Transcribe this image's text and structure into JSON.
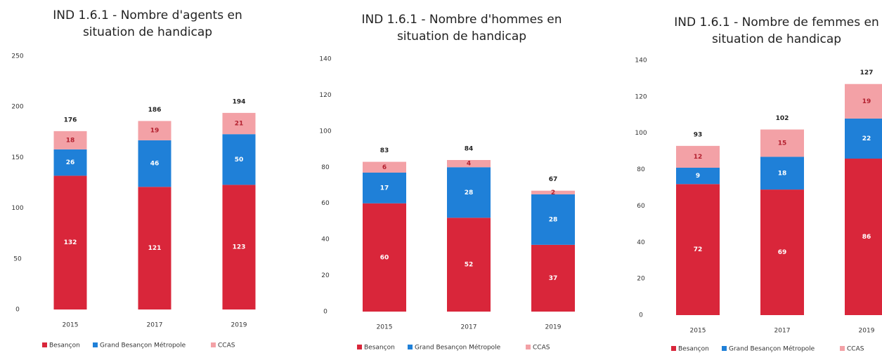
{
  "chart_data": [
    {
      "type": "bar",
      "stacked": true,
      "title": [
        "IND 1.6.1 - Nombre d'agents en",
        "situation de handicap"
      ],
      "categories": [
        "2015",
        "2017",
        "2019"
      ],
      "series": [
        {
          "name": "Besançon",
          "color": "#d9263a",
          "values": [
            132,
            121,
            123
          ]
        },
        {
          "name": "Grand Besançon Métropole",
          "color": "#1f80d8",
          "values": [
            26,
            46,
            50
          ]
        },
        {
          "name": "CCAS",
          "color": "#f3a1a6",
          "values": [
            18,
            19,
            21
          ]
        }
      ],
      "totals": [
        176,
        186,
        194
      ],
      "ylim": [
        0,
        250
      ],
      "yticks": [
        0,
        50,
        100,
        150,
        200,
        250
      ]
    },
    {
      "type": "bar",
      "stacked": true,
      "title": [
        "IND 1.6.1 - Nombre d'hommes en",
        "situation de handicap"
      ],
      "categories": [
        "2015",
        "2017",
        "2019"
      ],
      "series": [
        {
          "name": "Besançon",
          "color": "#d9263a",
          "values": [
            60,
            52,
            37
          ]
        },
        {
          "name": "Grand Besançon Métropole",
          "color": "#1f80d8",
          "values": [
            17,
            28,
            28
          ]
        },
        {
          "name": "CCAS",
          "color": "#f3a1a6",
          "values": [
            6,
            4,
            2
          ]
        }
      ],
      "totals": [
        83,
        84,
        67
      ],
      "ylim": [
        0,
        140
      ],
      "yticks": [
        0,
        20,
        40,
        60,
        80,
        100,
        120,
        140
      ]
    },
    {
      "type": "bar",
      "stacked": true,
      "title": [
        "IND 1.6.1 - Nombre de femmes en",
        "situation de handicap"
      ],
      "categories": [
        "2015",
        "2017",
        "2019"
      ],
      "series": [
        {
          "name": "Besançon",
          "color": "#d9263a",
          "values": [
            72,
            69,
            86
          ]
        },
        {
          "name": "Grand Besançon Métropole",
          "color": "#1f80d8",
          "values": [
            9,
            18,
            22
          ]
        },
        {
          "name": "CCAS",
          "color": "#f3a1a6",
          "values": [
            12,
            15,
            19
          ]
        }
      ],
      "totals": [
        93,
        102,
        127
      ],
      "ylim": [
        0,
        140
      ],
      "yticks": [
        0,
        20,
        40,
        60,
        80,
        100,
        120,
        140
      ]
    }
  ]
}
